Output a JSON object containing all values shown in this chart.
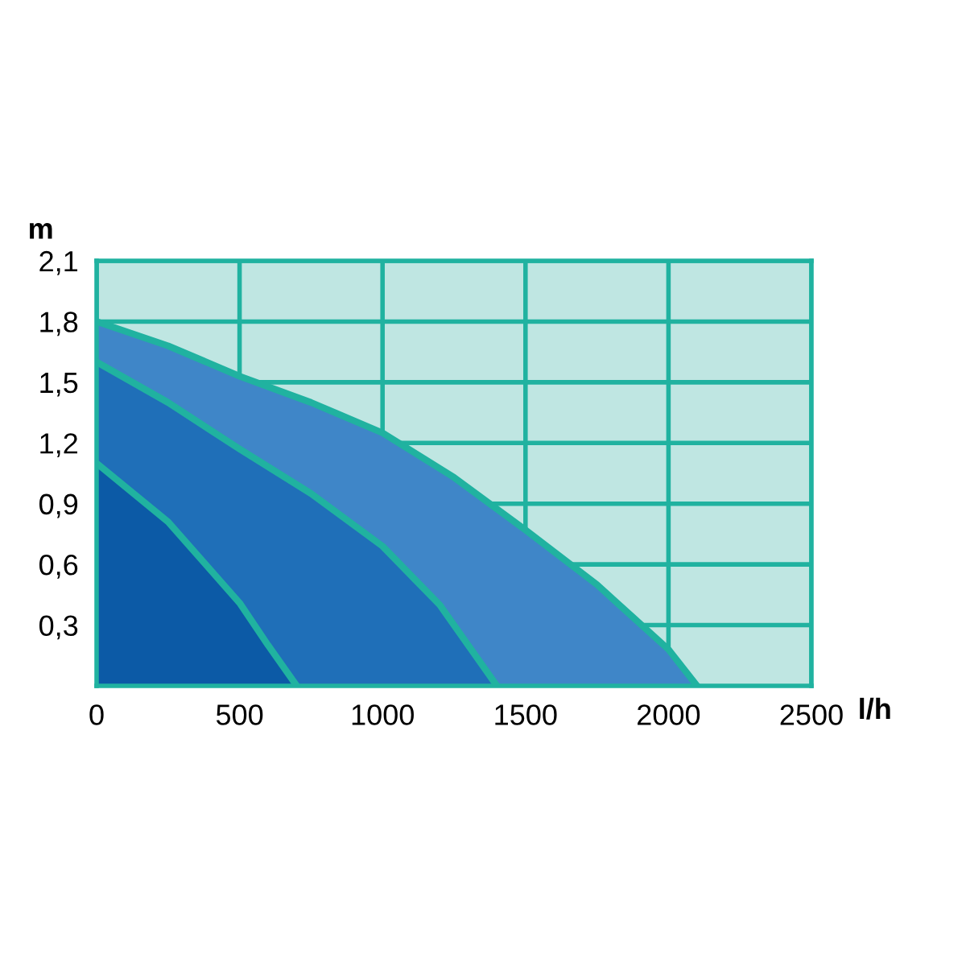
{
  "chart_data": {
    "type": "area",
    "xlabel": "l/h",
    "ylabel": "m",
    "series": [
      {
        "color": "#3f86c8",
        "x": [
          0,
          250,
          500,
          750,
          1000,
          1250,
          1500,
          1750,
          2000,
          2100
        ],
        "values": [
          1.8,
          1.68,
          1.53,
          1.4,
          1.25,
          1.03,
          0.77,
          0.5,
          0.18,
          0
        ]
      },
      {
        "color": "#1f6fb8",
        "x": [
          0,
          250,
          500,
          750,
          1000,
          1200,
          1400
        ],
        "values": [
          1.6,
          1.4,
          1.17,
          0.95,
          0.69,
          0.4,
          0
        ]
      },
      {
        "color": "#0c5aa6",
        "x": [
          0,
          250,
          500,
          600,
          700
        ],
        "values": [
          1.1,
          0.81,
          0.41,
          0.2,
          0
        ]
      }
    ],
    "xlim": [
      0,
      2500
    ],
    "ylim": [
      0,
      2.1
    ],
    "xticks": [
      0,
      500,
      1000,
      1500,
      2000,
      2500
    ],
    "yticks": [
      {
        "value": 0.3,
        "label": "0,3"
      },
      {
        "value": 0.6,
        "label": "0,6"
      },
      {
        "value": 0.9,
        "label": "0,9"
      },
      {
        "value": 1.2,
        "label": "1,2"
      },
      {
        "value": 1.5,
        "label": "1,5"
      },
      {
        "value": 1.8,
        "label": "1,8"
      },
      {
        "value": 2.1,
        "label": "2,1"
      }
    ],
    "grid": true,
    "line_style": "solid"
  }
}
